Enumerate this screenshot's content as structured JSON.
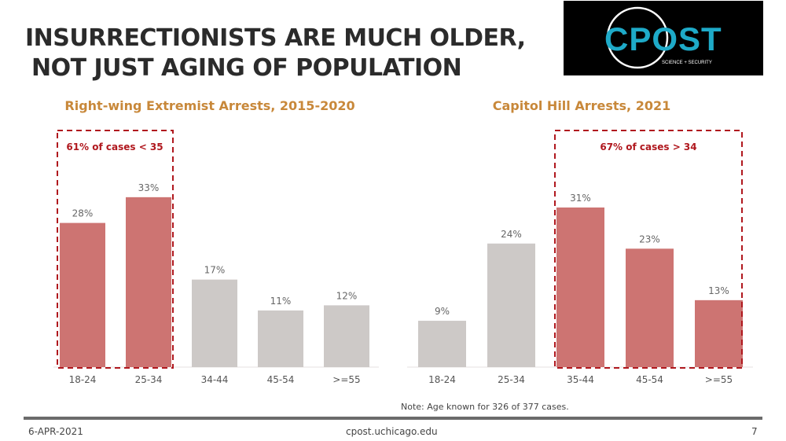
{
  "page": {
    "title_line1": "INSURRECTIONISTS ARE MUCH OLDER,",
    "title_line2": "NOT JUST AGING OF POPULATION",
    "logo_text": "CPOST",
    "logo_subtext": "SCIENCE + SECURITY",
    "note": "Note: Age known for 326 of 377 cases.",
    "footer_date": "6-APR-2021",
    "footer_url": "cpost.uchicago.edu",
    "footer_page": "7"
  },
  "colors": {
    "highlight": "#cd7472",
    "neutral": "#cdc9c7",
    "annotation": "#b0181e",
    "chart_title": "#c8883a"
  },
  "chart_data": [
    {
      "type": "bar",
      "title": "Right-wing Extremist Arrests, 2015-2020",
      "categories": [
        "18-24",
        "25-34",
        "34-44",
        "45-54",
        ">=55"
      ],
      "values": [
        28,
        33,
        17,
        11,
        12
      ],
      "labels": [
        "28%",
        "33%",
        "17%",
        "11%",
        "12%"
      ],
      "highlighted": [
        true,
        true,
        false,
        false,
        false
      ],
      "annotation": "61% of cases < 35",
      "annotation_range": [
        0,
        1
      ],
      "ylim": [
        0,
        40
      ],
      "grid": false
    },
    {
      "type": "bar",
      "title": "Capitol Hill Arrests, 2021",
      "categories": [
        "18-24",
        "25-34",
        "35-44",
        "45-54",
        ">=55"
      ],
      "values": [
        9,
        24,
        31,
        23,
        13
      ],
      "labels": [
        "9%",
        "24%",
        "31%",
        "23%",
        "13%"
      ],
      "highlighted": [
        false,
        false,
        true,
        true,
        true
      ],
      "annotation": "67% of cases > 34",
      "annotation_range": [
        2,
        4
      ],
      "ylim": [
        0,
        40
      ],
      "grid": false
    }
  ]
}
